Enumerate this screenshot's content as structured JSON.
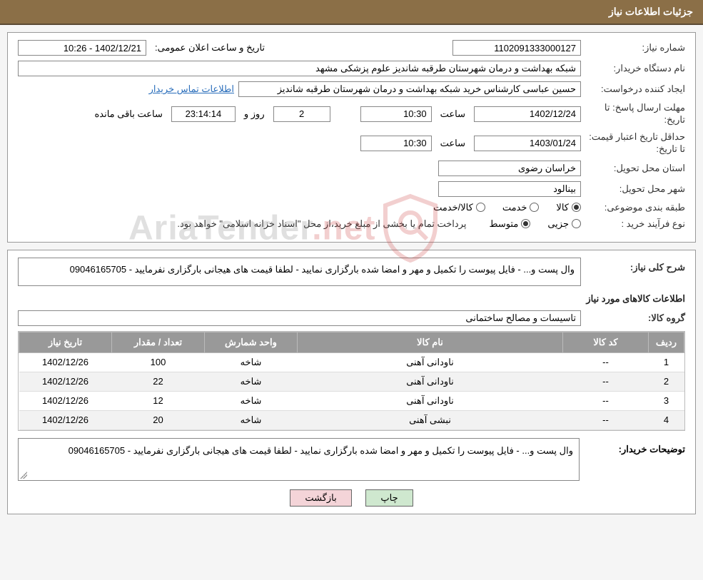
{
  "header": {
    "title": "جزئیات اطلاعات نیاز"
  },
  "fields": {
    "need_no_label": "شماره نیاز:",
    "need_no": "1102091333000127",
    "announce_label": "تاریخ و ساعت اعلان عمومی:",
    "announce_value": "1402/12/21 - 10:26",
    "buyer_org_label": "نام دستگاه خریدار:",
    "buyer_org": "شبکه بهداشت و درمان شهرستان طرقبه شاندیز   علوم پزشکی مشهد",
    "requester_label": "ایجاد کننده درخواست:",
    "requester": "حسین عباسی کارشناس خرید شبکه بهداشت و درمان شهرستان طرقبه شاندیز",
    "contact_link": "اطلاعات تماس خریدار",
    "reply_deadline_label": "مهلت ارسال پاسخ:",
    "to_date_label": "تا تاریخ:",
    "reply_date": "1402/12/24",
    "time_label": "ساعت",
    "reply_time": "10:30",
    "days_value": "2",
    "days_and": "روز و",
    "remain_value": "23:14:14",
    "remain_label": "ساعت باقی مانده",
    "price_validity_label": "حداقل تاریخ اعتبار قیمت:",
    "price_date": "1403/01/24",
    "price_time": "10:30",
    "delivery_province_label": "استان محل تحویل:",
    "delivery_province": "خراسان رضوی",
    "delivery_city_label": "شهر محل تحویل:",
    "delivery_city": "بینالود",
    "subject_class_label": "طبقه بندی موضوعی:",
    "radio_goods": "کالا",
    "radio_service": "خدمت",
    "radio_goods_service": "کالا/خدمت",
    "purchase_type_label": "نوع فرآیند خرید :",
    "radio_partial": "جزیی",
    "radio_medium": "متوسط",
    "payment_note": "پرداخت تمام یا بخشی از مبلغ خرید،از محل \"اسناد خزانه اسلامی\" خواهد بود."
  },
  "section2": {
    "overall_label": "شرح کلی نیاز:",
    "overall_text": "وال پست و... - فایل پیوست را تکمیل و مهر و امضا شده بارگزاری نمایید - لطفا قیمت های هیجانی بارگزاری نفرمایید - 09046165705",
    "goods_info_title": "اطلاعات کالاهای مورد نیاز",
    "group_label": "گروه کالا:",
    "group_value": "تاسیسات و مصالح ساختمانی",
    "table": {
      "headers": [
        "ردیف",
        "کد کالا",
        "نام کالا",
        "واحد شمارش",
        "تعداد / مقدار",
        "تاریخ نیاز"
      ],
      "col_widths": [
        "50px",
        "120px",
        "auto",
        "130px",
        "130px",
        "130px"
      ],
      "rows": [
        [
          "1",
          "--",
          "ناودانی آهنی",
          "شاخه",
          "100",
          "1402/12/26"
        ],
        [
          "2",
          "--",
          "ناودانی آهنی",
          "شاخه",
          "22",
          "1402/12/26"
        ],
        [
          "3",
          "--",
          "ناودانی آهنی",
          "شاخه",
          "12",
          "1402/12/26"
        ],
        [
          "4",
          "--",
          "نبشی آهنی",
          "شاخه",
          "20",
          "1402/12/26"
        ]
      ]
    },
    "buyer_note_label": "توضیحات خریدار:",
    "buyer_note_text": "وال پست و... - فایل پیوست را تکمیل و مهر و امضا شده بارگزاری نمایید - لطفا قیمت های هیجانی بارگزاری نفرمایید - 09046165705"
  },
  "buttons": {
    "print": "چاپ",
    "back": "بازگشت"
  },
  "watermark": {
    "text_main": "AriaTender",
    "text_suffix": ".net",
    "shield_stroke": "#c44"
  },
  "colors": {
    "header_bg": "#8b6f47",
    "th_bg": "#999999",
    "link": "#2a6ebb",
    "btn_print_bg": "#cfe8cf",
    "btn_back_bg": "#f4d4d8"
  }
}
